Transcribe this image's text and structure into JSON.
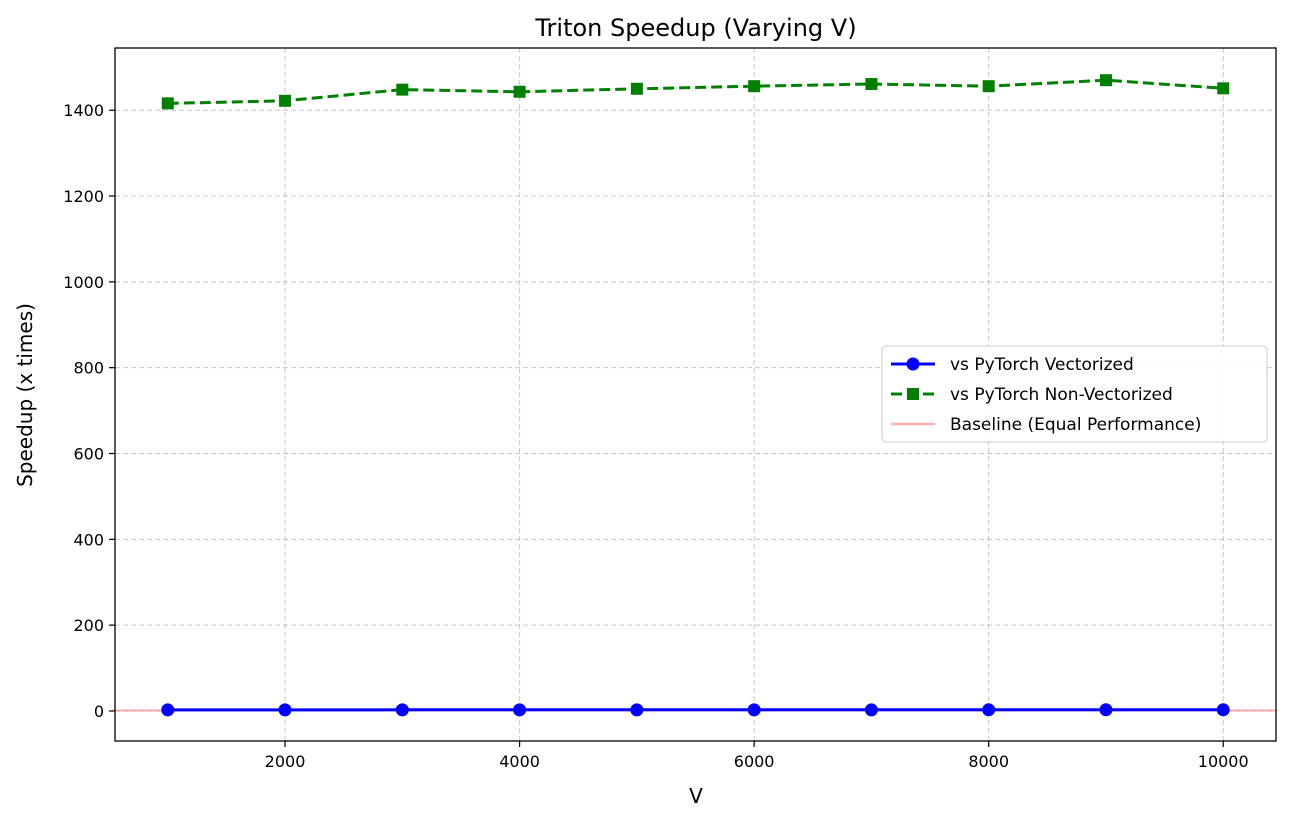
{
  "chart_data": {
    "type": "line",
    "title": "Triton Speedup (Varying V)",
    "xlabel": "V",
    "ylabel": "Speedup (x times)",
    "xlim": [
      550,
      10450
    ],
    "ylim": [
      -70,
      1545
    ],
    "xticks": [
      2000,
      4000,
      6000,
      8000,
      10000
    ],
    "yticks": [
      0,
      200,
      400,
      600,
      800,
      1000,
      1200,
      1400
    ],
    "grid": true,
    "legend_position": "center-right",
    "x": [
      1000,
      2000,
      3000,
      4000,
      5000,
      6000,
      7000,
      8000,
      9000,
      10000
    ],
    "series": [
      {
        "name": "vs PyTorch Vectorized",
        "color": "#0000ff",
        "marker": "circle",
        "linestyle": "solid",
        "values": [
          2.5,
          2.5,
          2.6,
          2.6,
          2.6,
          2.6,
          2.6,
          2.7,
          2.7,
          2.7
        ]
      },
      {
        "name": "vs PyTorch Non-Vectorized",
        "color": "#008000",
        "marker": "square",
        "linestyle": "dashed",
        "values": [
          1416,
          1422,
          1448,
          1443,
          1450,
          1456,
          1461,
          1456,
          1470,
          1451
        ]
      }
    ],
    "baseline": {
      "name": "Baseline (Equal Performance)",
      "value": 1,
      "color": "#ff8080"
    }
  }
}
